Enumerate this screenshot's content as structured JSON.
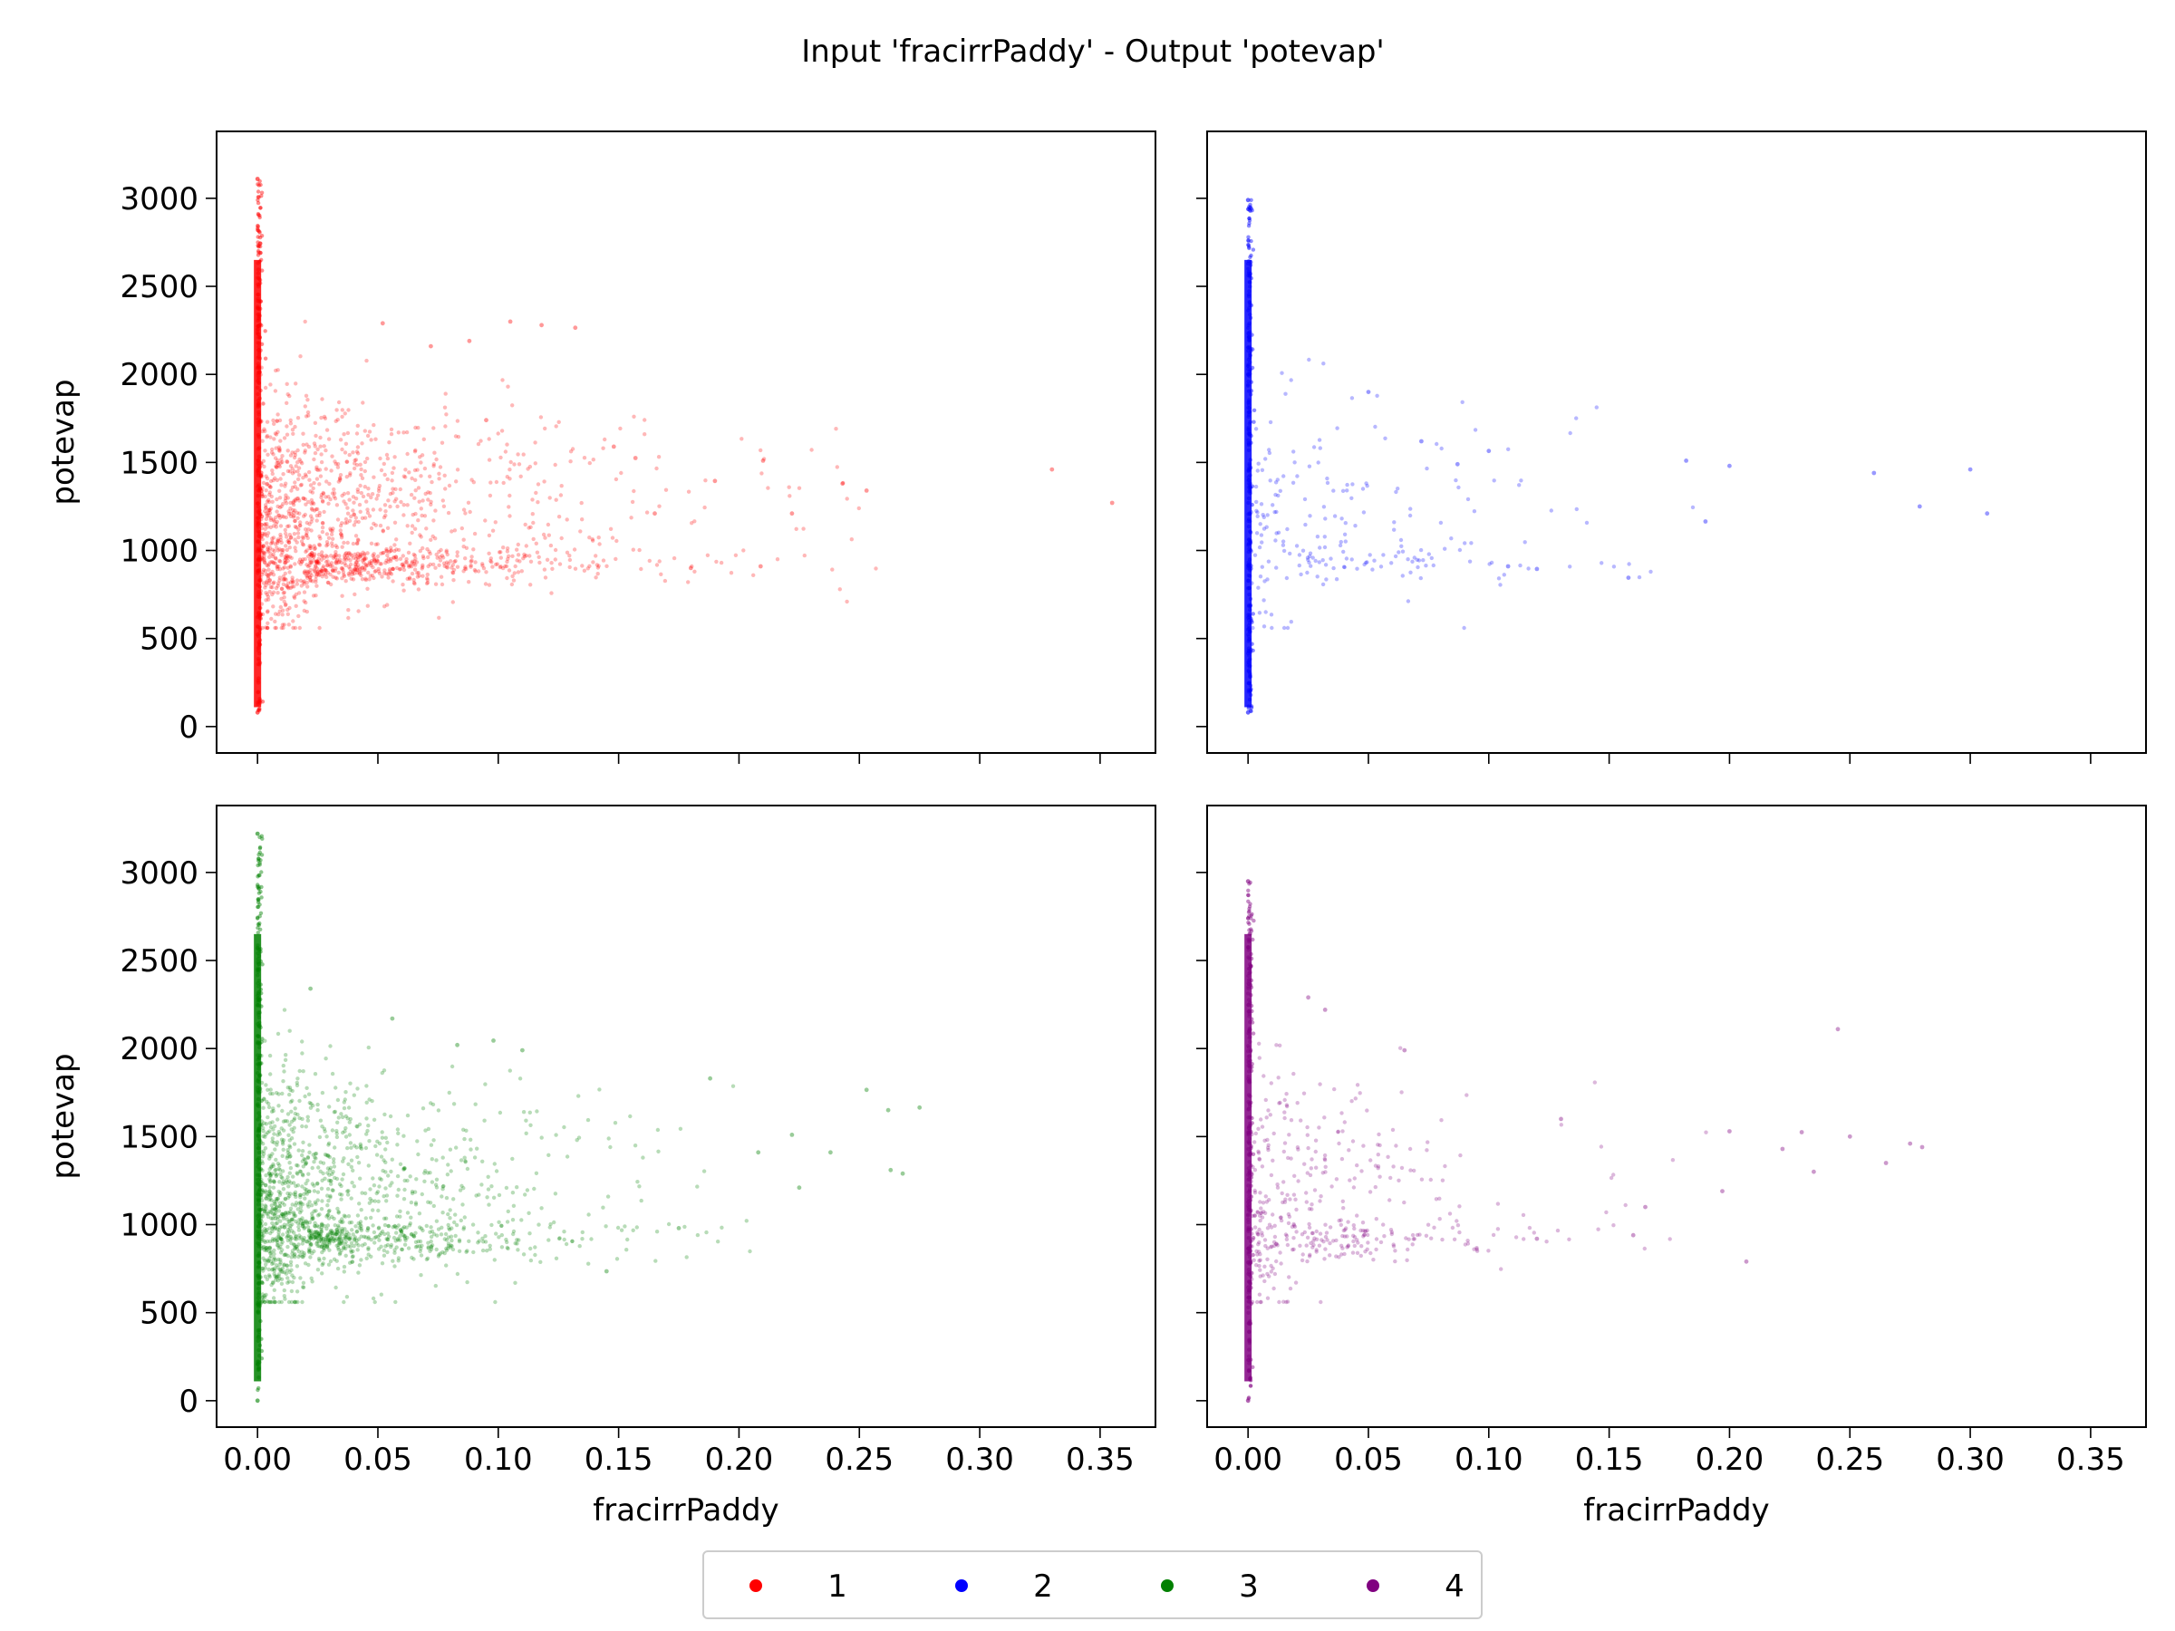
{
  "figure": {
    "title": "Input 'fracirrPaddy' - Output 'potevap'"
  },
  "legend": {
    "placement": "bottom-center",
    "entries": [
      {
        "label": "1",
        "color": "#ff0000"
      },
      {
        "label": "2",
        "color": "#0000ff"
      },
      {
        "label": "3",
        "color": "#008000"
      },
      {
        "label": "4",
        "color": "#800080"
      }
    ]
  },
  "chart_data": [
    {
      "type": "scatter",
      "series": [
        {
          "name": "1",
          "color": "#ff0000"
        }
      ],
      "xlabel": "",
      "ylabel": "potevap",
      "xlim": [
        -0.017,
        0.373
      ],
      "ylim": [
        -150,
        3380
      ],
      "xticks": [
        0.0,
        0.05,
        0.1,
        0.15,
        0.2,
        0.25,
        0.3,
        0.35
      ],
      "xtick_labels": [],
      "yticks": [
        0,
        500,
        1000,
        1500,
        2000,
        2500,
        3000
      ],
      "ytick_labels": [
        "0",
        "500",
        "1000",
        "1500",
        "2000",
        "2500",
        "3000"
      ],
      "column_range": [
        80,
        3110
      ],
      "spread_max_x": 0.35,
      "sample_points": [
        [
          0.355,
          1270
        ],
        [
          0.33,
          1460
        ],
        [
          0.253,
          1340
        ],
        [
          0.243,
          1380
        ],
        [
          0.222,
          1210
        ],
        [
          0.209,
          910
        ],
        [
          0.21,
          1510
        ],
        [
          0.19,
          1395
        ],
        [
          0.18,
          900
        ],
        [
          0.165,
          1210
        ],
        [
          0.157,
          1525
        ],
        [
          0.148,
          1590
        ],
        [
          0.132,
          2265
        ],
        [
          0.118,
          2280
        ],
        [
          0.105,
          2300
        ],
        [
          0.095,
          1740
        ],
        [
          0.088,
          2190
        ],
        [
          0.072,
          2160
        ],
        [
          0.052,
          2290
        ]
      ]
    },
    {
      "type": "scatter",
      "series": [
        {
          "name": "2",
          "color": "#0000ff"
        }
      ],
      "xlabel": "",
      "ylabel": "",
      "xlim": [
        -0.017,
        0.373
      ],
      "ylim": [
        -150,
        3380
      ],
      "xticks": [
        0.0,
        0.05,
        0.1,
        0.15,
        0.2,
        0.25,
        0.3,
        0.35
      ],
      "xtick_labels": [],
      "yticks": [
        0,
        500,
        1000,
        1500,
        2000,
        2500,
        3000
      ],
      "ytick_labels": [],
      "column_range": [
        80,
        2990
      ],
      "spread_max_x": 0.31,
      "sample_points": [
        [
          0.307,
          1210
        ],
        [
          0.3,
          1460
        ],
        [
          0.279,
          1250
        ],
        [
          0.26,
          1440
        ],
        [
          0.2,
          1480
        ],
        [
          0.19,
          1165
        ],
        [
          0.182,
          1510
        ],
        [
          0.158,
          845
        ],
        [
          0.12,
          895
        ],
        [
          0.108,
          910
        ],
        [
          0.1,
          1565
        ],
        [
          0.087,
          1490
        ],
        [
          0.05,
          1900
        ],
        [
          0.072,
          1620
        ]
      ]
    },
    {
      "type": "scatter",
      "series": [
        {
          "name": "3",
          "color": "#008000"
        }
      ],
      "xlabel": "fracirrPaddy",
      "ylabel": "potevap",
      "xlim": [
        -0.017,
        0.373
      ],
      "ylim": [
        -150,
        3380
      ],
      "xticks": [
        0.0,
        0.05,
        0.1,
        0.15,
        0.2,
        0.25,
        0.3,
        0.35
      ],
      "xtick_labels": [
        "0.00",
        "0.05",
        "0.10",
        "0.15",
        "0.20",
        "0.25",
        "0.30",
        "0.35"
      ],
      "yticks": [
        0,
        500,
        1000,
        1500,
        2000,
        2500,
        3000
      ],
      "ytick_labels": [
        "0",
        "500",
        "1000",
        "1500",
        "2000",
        "2500",
        "3000"
      ],
      "column_range": [
        0,
        3220
      ],
      "spread_max_x": 0.28,
      "sample_points": [
        [
          0.275,
          1665
        ],
        [
          0.268,
          1290
        ],
        [
          0.263,
          1310
        ],
        [
          0.262,
          1650
        ],
        [
          0.253,
          1765
        ],
        [
          0.238,
          1410
        ],
        [
          0.225,
          1210
        ],
        [
          0.222,
          1510
        ],
        [
          0.208,
          1410
        ],
        [
          0.188,
          1830
        ],
        [
          0.175,
          980
        ],
        [
          0.145,
          735
        ],
        [
          0.11,
          1990
        ],
        [
          0.098,
          2045
        ],
        [
          0.083,
          2020
        ],
        [
          0.056,
          2170
        ],
        [
          0.022,
          2340
        ]
      ]
    },
    {
      "type": "scatter",
      "series": [
        {
          "name": "4",
          "color": "#800080"
        }
      ],
      "xlabel": "fracirrPaddy",
      "ylabel": "",
      "xlim": [
        -0.017,
        0.373
      ],
      "ylim": [
        -150,
        3380
      ],
      "xticks": [
        0.0,
        0.05,
        0.1,
        0.15,
        0.2,
        0.25,
        0.3,
        0.35
      ],
      "xtick_labels": [
        "0.00",
        "0.05",
        "0.10",
        "0.15",
        "0.20",
        "0.25",
        "0.30",
        "0.35"
      ],
      "yticks": [
        0,
        500,
        1000,
        1500,
        2000,
        2500,
        3000
      ],
      "ytick_labels": [],
      "column_range": [
        0,
        2950
      ],
      "spread_max_x": 0.28,
      "sample_points": [
        [
          0.28,
          1440
        ],
        [
          0.275,
          1460
        ],
        [
          0.265,
          1350
        ],
        [
          0.245,
          2110
        ],
        [
          0.25,
          1500
        ],
        [
          0.235,
          1300
        ],
        [
          0.23,
          1525
        ],
        [
          0.222,
          1430
        ],
        [
          0.207,
          790
        ],
        [
          0.2,
          1530
        ],
        [
          0.197,
          1190
        ],
        [
          0.165,
          1100
        ],
        [
          0.16,
          940
        ],
        [
          0.13,
          1600
        ],
        [
          0.12,
          920
        ],
        [
          0.065,
          1990
        ],
        [
          0.032,
          2220
        ],
        [
          0.025,
          2290
        ]
      ]
    }
  ]
}
